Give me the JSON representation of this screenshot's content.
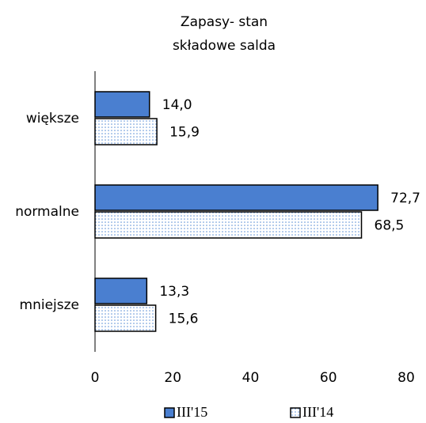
{
  "chart_data": {
    "type": "hbar",
    "title": [
      "Zapasy- stan",
      "składowe salda"
    ],
    "categories": [
      "większe",
      "normalne",
      "mniejsze"
    ],
    "series": [
      {
        "name": "III'15",
        "color": "#4a7fd0",
        "pattern": "solid",
        "values": [
          14.0,
          72.7,
          13.3
        ],
        "value_labels": [
          "14,0",
          "72,7",
          "13,3"
        ]
      },
      {
        "name": "III'14",
        "color": "#5b8fd6",
        "pattern": "dotted",
        "values": [
          15.9,
          68.5,
          15.6
        ],
        "value_labels": [
          "15,9",
          "68,5",
          "15,6"
        ]
      }
    ],
    "xlim": [
      0,
      80
    ],
    "xticks": [
      0,
      20,
      40,
      60,
      80
    ],
    "grid": false,
    "legend": "bottom"
  }
}
